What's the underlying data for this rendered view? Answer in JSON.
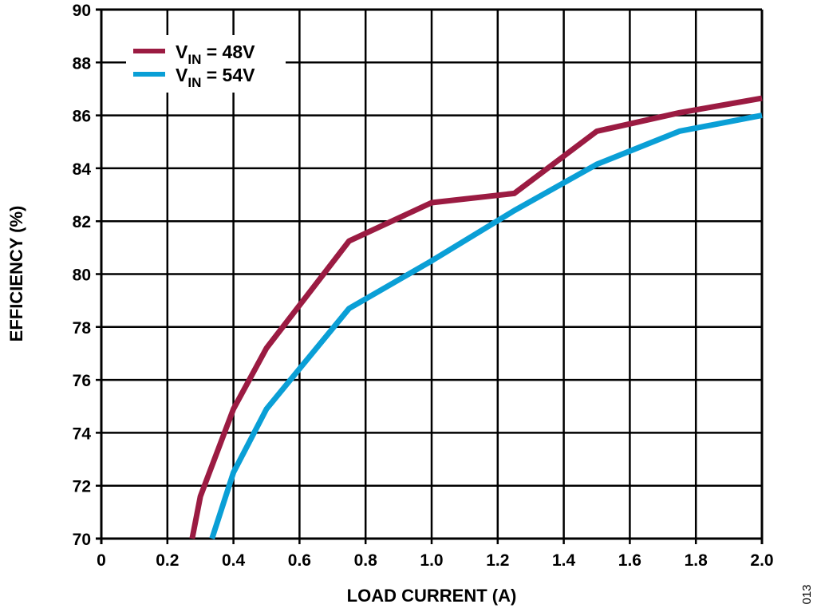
{
  "chart_data": {
    "type": "line",
    "xlabel": "LOAD CURRENT (A)",
    "ylabel": "EFFICIENCY (%)",
    "xlim": [
      0,
      2.0
    ],
    "ylim": [
      70,
      90
    ],
    "xticks": [
      "0",
      "0.2",
      "0.4",
      "0.6",
      "0.8",
      "1.0",
      "1.2",
      "1.4",
      "1.6",
      "1.8",
      "2.0"
    ],
    "yticks": [
      "70",
      "72",
      "74",
      "76",
      "78",
      "80",
      "82",
      "84",
      "86",
      "88",
      "90"
    ],
    "grid": true,
    "legend_position": "top-left",
    "legend": [
      {
        "base": "V",
        "sub": "IN",
        "suffix": " = 48V",
        "color": "#9B1B42"
      },
      {
        "base": "V",
        "sub": "IN",
        "suffix": " = 54V",
        "color": "#0A9FD6"
      }
    ],
    "series": [
      {
        "color": "#9B1B42",
        "x": [
          0.275,
          0.3,
          0.4,
          0.5,
          0.75,
          1.0,
          1.25,
          1.5,
          1.75,
          2.0
        ],
        "y": [
          70.0,
          71.6,
          74.9,
          77.2,
          81.25,
          82.7,
          83.05,
          85.4,
          86.1,
          86.65
        ]
      },
      {
        "color": "#0A9FD6",
        "x": [
          0.335,
          0.4,
          0.5,
          0.75,
          1.0,
          1.25,
          1.5,
          1.75,
          2.0
        ],
        "y": [
          70.0,
          72.5,
          74.9,
          78.7,
          80.5,
          82.4,
          84.15,
          85.4,
          86.0
        ]
      }
    ]
  },
  "figure_number": "013"
}
